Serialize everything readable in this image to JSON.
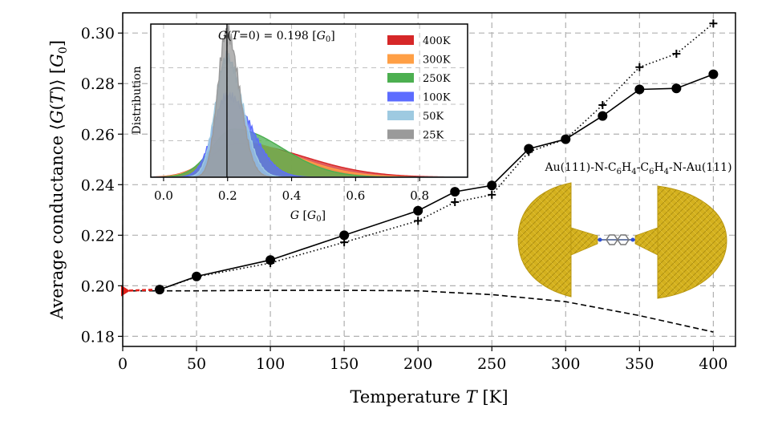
{
  "chart_data": {
    "type": "line",
    "xlabel": "Temperature T [K]",
    "ylabel": "Average conductance ⟨G(T)⟩ [G₀]",
    "xlim": [
      0,
      415
    ],
    "ylim": [
      0.176,
      0.308
    ],
    "x_ticks": [
      "0",
      "50",
      "100",
      "150",
      "200",
      "250",
      "300",
      "350",
      "400"
    ],
    "y_ticks": [
      "0.18",
      "0.20",
      "0.22",
      "0.24",
      "0.26",
      "0.28",
      "0.30"
    ],
    "grid": true,
    "series": [
      {
        "style": "solid-circles",
        "x": [
          25,
          50,
          100,
          150,
          200,
          225,
          250,
          275,
          300,
          325,
          350,
          375,
          400
        ],
        "y": [
          0.1985,
          0.2037,
          0.2102,
          0.22,
          0.2297,
          0.2372,
          0.2397,
          0.2542,
          0.258,
          0.2672,
          0.2777,
          0.2781,
          0.2837
        ]
      },
      {
        "style": "dotted-plus",
        "x": [
          25,
          50,
          100,
          150,
          200,
          225,
          250,
          275,
          300,
          325,
          350,
          375,
          400
        ],
        "y": [
          0.1985,
          0.2035,
          0.209,
          0.2172,
          0.2257,
          0.2331,
          0.236,
          0.253,
          0.258,
          0.2715,
          0.2865,
          0.2918,
          0.3038
        ]
      },
      {
        "style": "dashed-fit",
        "x": [
          0,
          50,
          100,
          150,
          200,
          250,
          300,
          350,
          400
        ],
        "y": [
          0.198,
          0.198,
          0.1982,
          0.1982,
          0.198,
          0.1965,
          0.1937,
          0.1882,
          0.1817
        ]
      },
      {
        "style": "red-dashed-extrapolation",
        "x": [
          0,
          25
        ],
        "y": [
          0.198,
          0.1985
        ]
      }
    ],
    "inset": {
      "type": "area",
      "xlabel": "G [G₀]",
      "ylabel": "Distribution",
      "xlim": [
        -0.04,
        0.95
      ],
      "x_ticks": [
        "0.0",
        "0.2",
        "0.4",
        "0.6",
        "0.8"
      ],
      "vline_x": 0.198,
      "annotation": "G(T=0) = 0.198 [G₀]",
      "series": [
        {
          "name": "400K",
          "color": "#d62728",
          "mu": 0.23,
          "sigma_left": 0.085,
          "sigma_right": 0.21,
          "peak": 0.23
        },
        {
          "name": "300K",
          "color": "#ff9f45",
          "mu": 0.225,
          "sigma_left": 0.08,
          "sigma_right": 0.18,
          "peak": 0.245
        },
        {
          "name": "250K",
          "color": "#4caf50",
          "mu": 0.22,
          "sigma_left": 0.07,
          "sigma_right": 0.15,
          "peak": 0.33
        },
        {
          "name": "100K",
          "color": "#5c6cff",
          "mu": 0.2,
          "sigma_left": 0.045,
          "sigma_right": 0.075,
          "peak": 0.56
        },
        {
          "name": "50K",
          "color": "#9ecae1",
          "mu": 0.197,
          "sigma_left": 0.035,
          "sigma_right": 0.05,
          "peak": 0.82
        },
        {
          "name": "25K",
          "color": "#9a9a9a",
          "mu": 0.197,
          "sigma_left": 0.028,
          "sigma_right": 0.04,
          "peak": 1.0
        }
      ]
    },
    "molecule_label": "Au(111)-N-C₆H₄-C₆H₄-N-Au(111)"
  }
}
